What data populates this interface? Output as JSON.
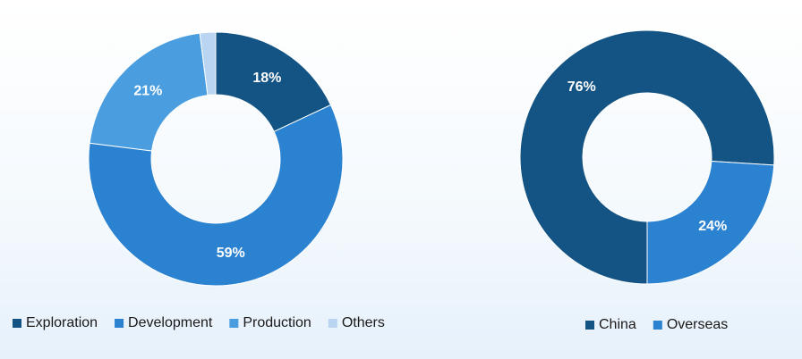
{
  "chart_data": [
    {
      "type": "donut",
      "categories": [
        "Exploration",
        "Development",
        "Production",
        "Others"
      ],
      "values": [
        18,
        59,
        21,
        2
      ],
      "value_labels": [
        "18%",
        "59%",
        "21%",
        null
      ],
      "colors": [
        "#135484",
        "#2a82d0",
        "#4a9ee0",
        "#b9d5f2"
      ]
    },
    {
      "type": "donut",
      "categories": [
        "China",
        "Overseas"
      ],
      "values": [
        76,
        24
      ],
      "value_labels": [
        "76%",
        "24%"
      ],
      "colors": [
        "#135484",
        "#2a82d0"
      ]
    }
  ]
}
